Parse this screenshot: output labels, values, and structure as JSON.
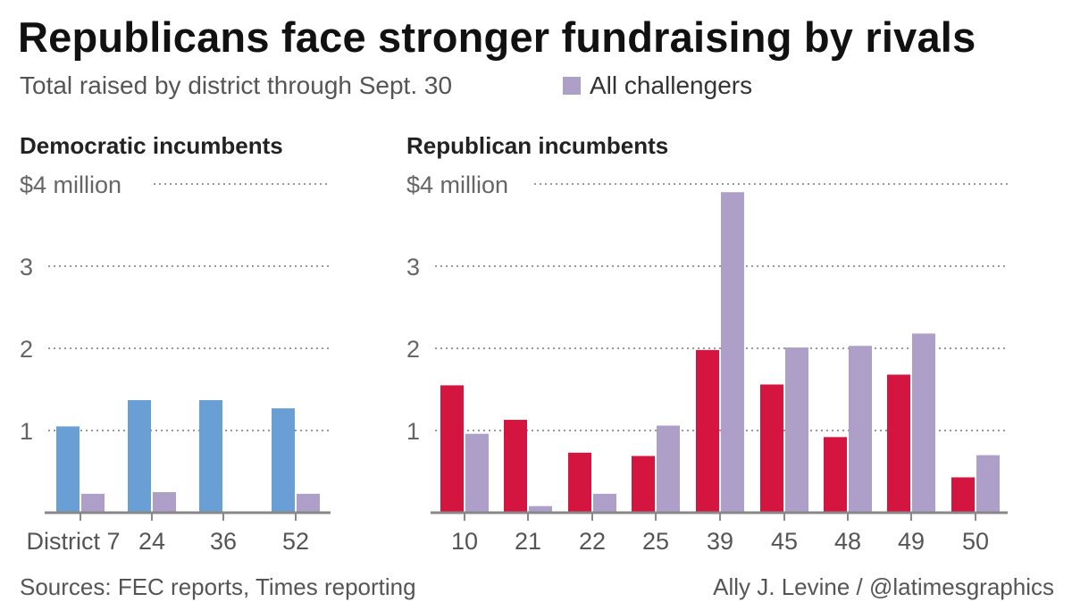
{
  "title": "Republicans face stronger fundraising by rivals",
  "subtitle": "Total raised by district through Sept. 30",
  "legend": {
    "label": "All challengers",
    "color": "#ae9fc9"
  },
  "footer": {
    "sources": "Sources: FEC reports, Times reporting",
    "credit": "Ally J. Levine / @latimesgraphics"
  },
  "colors": {
    "democratic_incumbent": "#6a9fd6",
    "republican_incumbent": "#d41540",
    "challenger": "#ae9fc9",
    "grid": "#999999",
    "axis": "#888888"
  },
  "chart_data": [
    {
      "type": "bar",
      "title": "Democratic incumbents",
      "ytick_labels": [
        "",
        "1",
        "2",
        "3",
        "$4 million"
      ],
      "ylim": [
        0,
        4
      ],
      "grid": true,
      "categories": [
        "District 7",
        "24",
        "36",
        "52"
      ],
      "series": [
        {
          "role": "incumbent",
          "values": [
            1.05,
            1.37,
            1.37,
            1.27
          ]
        },
        {
          "name": "All challengers",
          "role": "challenger",
          "values": [
            0.23,
            0.25,
            0.0,
            0.23
          ]
        }
      ]
    },
    {
      "type": "bar",
      "title": "Republican incumbents",
      "ytick_labels": [
        "",
        "1",
        "2",
        "3",
        "$4 million"
      ],
      "ylim": [
        0,
        4
      ],
      "grid": true,
      "categories": [
        "10",
        "21",
        "22",
        "25",
        "39",
        "45",
        "48",
        "49",
        "50"
      ],
      "series": [
        {
          "role": "incumbent",
          "values": [
            1.55,
            1.13,
            0.73,
            0.69,
            1.98,
            1.56,
            0.92,
            1.68,
            0.43
          ]
        },
        {
          "name": "All challengers",
          "role": "challenger",
          "values": [
            0.96,
            0.08,
            0.23,
            1.06,
            3.9,
            2.01,
            2.03,
            2.18,
            0.7
          ]
        }
      ]
    }
  ]
}
